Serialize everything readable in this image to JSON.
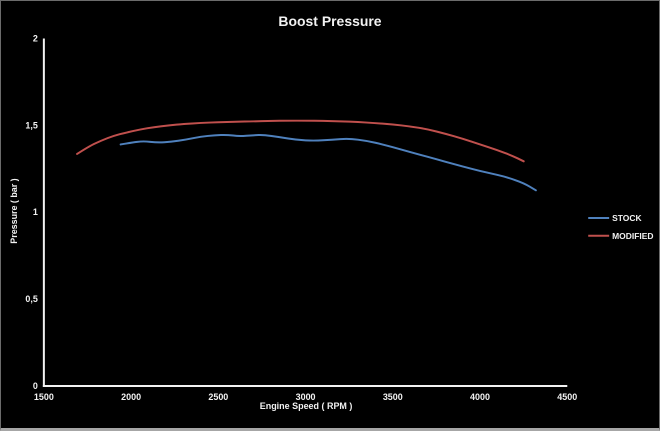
{
  "chart_data": {
    "type": "line",
    "title": "Boost Pressure",
    "xlabel": "Engine Speed ( RPM )",
    "ylabel": "Pressure ( bar )",
    "xlim": [
      1500,
      4500
    ],
    "ylim": [
      0,
      2
    ],
    "grid": false,
    "legend_position": "right",
    "x_ticks": [
      {
        "label": "1500",
        "value": 1500
      },
      {
        "label": "2000",
        "value": 2000
      },
      {
        "label": "2500",
        "value": 2500
      },
      {
        "label": "3000",
        "value": 3000
      },
      {
        "label": "3500",
        "value": 3500
      },
      {
        "label": "4000",
        "value": 4000
      },
      {
        "label": "4500",
        "value": 4500
      }
    ],
    "y_ticks": [
      {
        "label": "0",
        "value": 0
      },
      {
        "label": "0,5",
        "value": 0.5
      },
      {
        "label": "1",
        "value": 1
      },
      {
        "label": "1,5",
        "value": 1.5
      },
      {
        "label": "2",
        "value": 2
      }
    ],
    "series": [
      {
        "name": "STOCK",
        "color": "#4f81bd",
        "points": [
          [
            1940,
            1.39
          ],
          [
            2000,
            1.4
          ],
          [
            2070,
            1.41
          ],
          [
            2150,
            1.4
          ],
          [
            2230,
            1.405
          ],
          [
            2310,
            1.417
          ],
          [
            2400,
            1.435
          ],
          [
            2480,
            1.443
          ],
          [
            2550,
            1.445
          ],
          [
            2620,
            1.437
          ],
          [
            2700,
            1.443
          ],
          [
            2760,
            1.445
          ],
          [
            2850,
            1.432
          ],
          [
            2950,
            1.416
          ],
          [
            3050,
            1.411
          ],
          [
            3150,
            1.417
          ],
          [
            3250,
            1.424
          ],
          [
            3350,
            1.411
          ],
          [
            3450,
            1.388
          ],
          [
            3550,
            1.36
          ],
          [
            3650,
            1.332
          ],
          [
            3750,
            1.305
          ],
          [
            3850,
            1.277
          ],
          [
            3950,
            1.25
          ],
          [
            4050,
            1.226
          ],
          [
            4150,
            1.203
          ],
          [
            4250,
            1.168
          ],
          [
            4320,
            1.126
          ]
        ]
      },
      {
        "name": "MODIFIED",
        "color": "#c0504d",
        "points": [
          [
            1690,
            1.335
          ],
          [
            1760,
            1.38
          ],
          [
            1830,
            1.413
          ],
          [
            1900,
            1.44
          ],
          [
            1970,
            1.458
          ],
          [
            2050,
            1.476
          ],
          [
            2130,
            1.49
          ],
          [
            2220,
            1.5
          ],
          [
            2300,
            1.508
          ],
          [
            2400,
            1.514
          ],
          [
            2500,
            1.518
          ],
          [
            2600,
            1.521
          ],
          [
            2700,
            1.523
          ],
          [
            2800,
            1.525
          ],
          [
            2900,
            1.527
          ],
          [
            3000,
            1.527
          ],
          [
            3100,
            1.526
          ],
          [
            3200,
            1.523
          ],
          [
            3300,
            1.519
          ],
          [
            3400,
            1.513
          ],
          [
            3500,
            1.505
          ],
          [
            3600,
            1.494
          ],
          [
            3700,
            1.477
          ],
          [
            3800,
            1.452
          ],
          [
            3900,
            1.423
          ],
          [
            4000,
            1.39
          ],
          [
            4100,
            1.357
          ],
          [
            4180,
            1.327
          ],
          [
            4250,
            1.293
          ]
        ]
      }
    ],
    "colors": {
      "background": "#000000",
      "axis": "#f2f2f2",
      "text": "#f2f2f2",
      "frame_border": "#6b6b6b",
      "frame_border_bottom": "#a6a6a6"
    }
  }
}
